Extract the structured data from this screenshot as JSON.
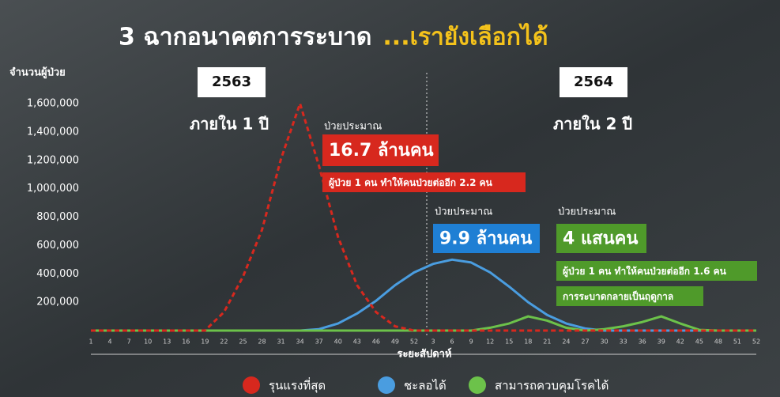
{
  "chart_data": {
    "type": "line",
    "title": "3 ฉากอนาคตการระบาด",
    "title_highlight": "...เรายังเลือกได้",
    "y_label": "จำนวนผู้ป่วย",
    "x_label": "ระยะสัปดาห์",
    "year_labels": [
      "2563",
      "2564"
    ],
    "period_labels": [
      "ภายใน 1 ปี",
      "ภายใน 2 ปี"
    ],
    "categories": [
      "1",
      "4",
      "7",
      "10",
      "13",
      "16",
      "19",
      "22",
      "25",
      "28",
      "31",
      "34",
      "37",
      "40",
      "43",
      "46",
      "49",
      "52",
      "3",
      "6",
      "9",
      "12",
      "15",
      "18",
      "21",
      "24",
      "27",
      "30",
      "33",
      "36",
      "39",
      "42",
      "45",
      "48",
      "51",
      "52"
    ],
    "ylim": [
      0,
      1600000
    ],
    "yticks": [
      {
        "value": 200000,
        "label": "200,000"
      },
      {
        "value": 400000,
        "label": "400,000"
      },
      {
        "value": 600000,
        "label": "600,000"
      },
      {
        "value": 800000,
        "label": "800,000"
      },
      {
        "value": 1000000,
        "label": "1,000,000"
      },
      {
        "value": 1200000,
        "label": "1,200,000"
      },
      {
        "value": 1400000,
        "label": "1,400,000"
      },
      {
        "value": 1600000,
        "label": "1,600,000"
      }
    ],
    "series": [
      {
        "name": "รุนแรงที่สุด",
        "color": "#d7281e",
        "dashed": true,
        "values": [
          0,
          0,
          0,
          0,
          0,
          0,
          0,
          130000,
          380000,
          710000,
          1210000,
          1600000,
          1160000,
          660000,
          320000,
          130000,
          30000,
          0,
          0,
          0,
          0,
          0,
          0,
          0,
          0,
          0,
          0,
          0,
          0,
          0,
          0,
          0,
          0,
          0,
          0,
          0
        ]
      },
      {
        "name": "ชะลอได้",
        "color": "#4a9de0",
        "dashed": false,
        "values": [
          0,
          0,
          0,
          0,
          0,
          0,
          0,
          0,
          0,
          0,
          0,
          0,
          10000,
          50000,
          120000,
          210000,
          320000,
          410000,
          470000,
          500000,
          480000,
          410000,
          310000,
          200000,
          110000,
          50000,
          15000,
          0,
          0,
          0,
          0,
          0,
          0,
          0,
          0,
          0
        ]
      },
      {
        "name": "สามารถควบคุมโรคได้",
        "color": "#6cc24a",
        "dashed": false,
        "values": [
          0,
          0,
          0,
          0,
          0,
          0,
          0,
          0,
          0,
          0,
          0,
          0,
          0,
          0,
          0,
          0,
          0,
          0,
          0,
          0,
          0,
          20000,
          50000,
          100000,
          70000,
          20000,
          0,
          10000,
          30000,
          60000,
          100000,
          50000,
          5000,
          0,
          0,
          0
        ]
      }
    ],
    "annotations": [
      {
        "text": "ป่วยประมาณ"
      },
      {
        "text": "16.7 ล้านคน",
        "color": "#d7281e"
      },
      {
        "text": "ผู้ป่วย 1 คน ทำให้คนป่วยต่ออีก 2.2 คน",
        "color": "#d7281e"
      },
      {
        "text": "ป่วยประมาณ"
      },
      {
        "text": "9.9 ล้านคน",
        "color": "#1f7fd4"
      },
      {
        "text": "ป่วยประมาณ"
      },
      {
        "text": "4 แสนคน",
        "color": "#4f9a2a"
      },
      {
        "text": "ผู้ป่วย 1 คน ทำให้คนป่วยต่ออีก 1.6 คน",
        "color": "#4f9a2a"
      },
      {
        "text": "การระบาดกลายเป็นฤดูกาล",
        "color": "#4f9a2a"
      }
    ]
  }
}
